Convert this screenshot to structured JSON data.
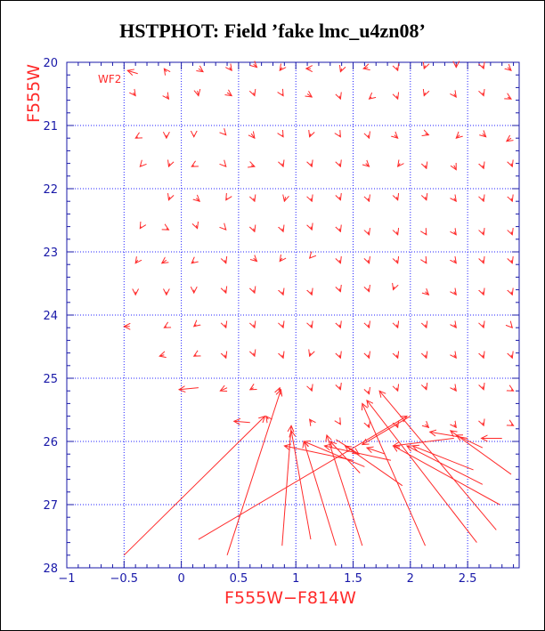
{
  "chart_data": {
    "type": "quiver",
    "title": "HSTPHOT: Field ’fake lmc_u4zn08’",
    "xlabel": "F555W−F814W",
    "ylabel": "F555W",
    "chip_label": "WF2",
    "xlim": [
      -1,
      2.95
    ],
    "ylim": [
      28,
      20
    ],
    "x_ticks": [
      "−1",
      "−0.5",
      "0",
      "0.5",
      "1",
      "1.5",
      "2",
      "2.5"
    ],
    "x_tick_values": [
      -1,
      -0.5,
      0,
      0.5,
      1,
      1.5,
      2,
      2.5
    ],
    "y_ticks": [
      "20",
      "21",
      "22",
      "23",
      "24",
      "25",
      "26",
      "27",
      "28"
    ],
    "y_tick_values": [
      20,
      21,
      22,
      23,
      24,
      25,
      26,
      27,
      28
    ],
    "grid": true,
    "colors": {
      "axes": "#1818a8",
      "grid": "#2020ff",
      "vectors": "#ff2a2a",
      "labels": "#ff2a2a"
    },
    "vectors": [
      [
        -0.38,
        20.18,
        -0.47,
        20.13
      ],
      [
        -0.13,
        20.15,
        -0.15,
        20.1
      ],
      [
        0.15,
        20.1,
        0.19,
        20.15
      ],
      [
        0.42,
        20.08,
        0.44,
        20.13
      ],
      [
        0.63,
        20.03,
        0.66,
        20.08
      ],
      [
        0.88,
        20.08,
        0.86,
        20.13
      ],
      [
        1.13,
        20.1,
        1.09,
        20.1
      ],
      [
        1.4,
        20.1,
        1.39,
        20.15
      ],
      [
        1.63,
        20.08,
        1.59,
        20.1
      ],
      [
        1.88,
        20.08,
        1.89,
        20.13
      ],
      [
        2.13,
        20.05,
        2.12,
        20.1
      ],
      [
        2.4,
        20.03,
        2.4,
        20.08
      ],
      [
        2.63,
        20.05,
        2.64,
        20.1
      ],
      [
        2.85,
        20.08,
        2.88,
        20.13
      ],
      [
        -0.42,
        20.48,
        -0.4,
        20.53
      ],
      [
        -0.13,
        20.53,
        -0.11,
        20.58
      ],
      [
        0.14,
        20.45,
        0.15,
        20.53
      ],
      [
        0.4,
        20.48,
        0.44,
        20.53
      ],
      [
        0.63,
        20.48,
        0.64,
        20.53
      ],
      [
        0.88,
        20.5,
        0.89,
        20.53
      ],
      [
        1.1,
        20.5,
        1.14,
        20.55
      ],
      [
        1.38,
        20.53,
        1.39,
        20.58
      ],
      [
        1.66,
        20.55,
        1.64,
        20.58
      ],
      [
        1.88,
        20.53,
        1.89,
        20.58
      ],
      [
        2.13,
        20.48,
        2.12,
        20.53
      ],
      [
        2.38,
        20.5,
        2.4,
        20.55
      ],
      [
        2.63,
        20.48,
        2.64,
        20.53
      ],
      [
        2.85,
        20.55,
        2.88,
        20.58
      ],
      [
        -0.38,
        21.18,
        -0.4,
        21.2
      ],
      [
        -0.13,
        21.15,
        -0.13,
        21.2
      ],
      [
        0.11,
        21.15,
        0.11,
        21.18
      ],
      [
        0.38,
        21.13,
        0.39,
        21.15
      ],
      [
        0.61,
        21.13,
        0.64,
        21.2
      ],
      [
        0.88,
        21.15,
        0.89,
        21.18
      ],
      [
        1.13,
        21.13,
        1.12,
        21.18
      ],
      [
        1.38,
        21.15,
        1.39,
        21.18
      ],
      [
        1.63,
        21.15,
        1.64,
        21.2
      ],
      [
        1.86,
        21.15,
        1.89,
        21.2
      ],
      [
        2.13,
        21.13,
        2.16,
        21.15
      ],
      [
        2.43,
        21.15,
        2.4,
        21.2
      ],
      [
        2.63,
        21.13,
        2.66,
        21.18
      ],
      [
        2.88,
        21.2,
        2.84,
        21.25
      ],
      [
        -0.35,
        21.63,
        -0.36,
        21.65
      ],
      [
        -0.1,
        21.6,
        -0.11,
        21.65
      ],
      [
        0.11,
        21.63,
        0.09,
        21.65
      ],
      [
        0.38,
        21.63,
        0.39,
        21.65
      ],
      [
        0.61,
        21.63,
        0.64,
        21.65
      ],
      [
        0.88,
        21.6,
        0.89,
        21.65
      ],
      [
        1.13,
        21.6,
        1.14,
        21.65
      ],
      [
        1.38,
        21.6,
        1.39,
        21.65
      ],
      [
        1.61,
        21.6,
        1.64,
        21.65
      ],
      [
        1.91,
        21.6,
        1.89,
        21.65
      ],
      [
        2.13,
        21.63,
        2.14,
        21.68
      ],
      [
        2.38,
        21.63,
        2.4,
        21.7
      ],
      [
        2.63,
        21.63,
        2.64,
        21.68
      ],
      [
        2.88,
        21.6,
        2.89,
        21.65
      ],
      [
        -0.1,
        22.13,
        -0.11,
        22.18
      ],
      [
        0.13,
        22.15,
        0.16,
        22.2
      ],
      [
        0.4,
        22.15,
        0.39,
        22.18
      ],
      [
        0.63,
        22.15,
        0.64,
        22.2
      ],
      [
        0.91,
        22.13,
        0.9,
        22.2
      ],
      [
        1.13,
        22.15,
        1.14,
        22.2
      ],
      [
        1.38,
        22.13,
        1.39,
        22.18
      ],
      [
        1.63,
        22.15,
        1.64,
        22.2
      ],
      [
        1.88,
        22.13,
        1.89,
        22.18
      ],
      [
        2.13,
        22.13,
        2.14,
        22.18
      ],
      [
        2.38,
        22.15,
        2.4,
        22.2
      ],
      [
        2.63,
        22.15,
        2.64,
        22.2
      ],
      [
        2.88,
        22.15,
        2.89,
        22.2
      ],
      [
        -0.35,
        22.6,
        -0.36,
        22.63
      ],
      [
        -0.13,
        22.63,
        -0.11,
        22.65
      ],
      [
        0.13,
        22.58,
        0.14,
        22.63
      ],
      [
        0.38,
        22.63,
        0.39,
        22.65
      ],
      [
        0.63,
        22.63,
        0.64,
        22.68
      ],
      [
        0.88,
        22.63,
        0.89,
        22.68
      ],
      [
        1.13,
        22.6,
        1.14,
        22.65
      ],
      [
        1.38,
        22.63,
        1.39,
        22.68
      ],
      [
        1.63,
        22.68,
        1.64,
        22.73
      ],
      [
        1.88,
        22.68,
        1.89,
        22.73
      ],
      [
        2.13,
        22.7,
        2.14,
        22.73
      ],
      [
        2.38,
        22.68,
        2.4,
        22.73
      ],
      [
        2.63,
        22.68,
        2.64,
        22.73
      ],
      [
        2.88,
        22.68,
        2.89,
        22.73
      ],
      [
        -0.38,
        23.13,
        -0.4,
        23.18
      ],
      [
        -0.13,
        23.13,
        -0.17,
        23.18
      ],
      [
        0.11,
        23.15,
        0.09,
        23.18
      ],
      [
        0.38,
        23.13,
        0.39,
        23.18
      ],
      [
        0.63,
        23.1,
        0.66,
        23.15
      ],
      [
        0.88,
        23.1,
        0.86,
        23.15
      ],
      [
        1.13,
        23.08,
        1.12,
        23.1
      ],
      [
        1.38,
        23.13,
        1.39,
        23.18
      ],
      [
        1.63,
        23.13,
        1.64,
        23.18
      ],
      [
        1.88,
        23.13,
        1.89,
        23.18
      ],
      [
        2.13,
        23.15,
        2.14,
        23.18
      ],
      [
        2.38,
        23.13,
        2.4,
        23.18
      ],
      [
        2.63,
        23.13,
        2.64,
        23.18
      ],
      [
        2.88,
        23.13,
        2.89,
        23.18
      ],
      [
        -0.4,
        23.63,
        -0.4,
        23.68
      ],
      [
        -0.13,
        23.63,
        -0.13,
        23.68
      ],
      [
        0.11,
        23.6,
        0.11,
        23.65
      ],
      [
        0.38,
        23.6,
        0.39,
        23.65
      ],
      [
        0.63,
        23.6,
        0.64,
        23.65
      ],
      [
        0.88,
        23.63,
        0.89,
        23.68
      ],
      [
        1.13,
        23.63,
        1.14,
        23.68
      ],
      [
        1.38,
        23.58,
        1.39,
        23.63
      ],
      [
        1.63,
        23.58,
        1.64,
        23.63
      ],
      [
        1.86,
        23.55,
        1.85,
        23.6
      ],
      [
        2.13,
        23.63,
        2.16,
        23.68
      ],
      [
        2.38,
        23.63,
        2.4,
        23.68
      ],
      [
        2.63,
        23.63,
        2.64,
        23.68
      ],
      [
        2.88,
        23.63,
        2.89,
        23.68
      ],
      [
        -0.45,
        24.18,
        -0.5,
        24.18
      ],
      [
        -0.13,
        24.18,
        -0.15,
        24.2
      ],
      [
        0.13,
        24.15,
        0.11,
        24.18
      ],
      [
        0.38,
        24.15,
        0.39,
        24.2
      ],
      [
        0.63,
        24.15,
        0.64,
        24.2
      ],
      [
        0.88,
        24.15,
        0.89,
        24.2
      ],
      [
        1.13,
        24.15,
        1.14,
        24.2
      ],
      [
        1.38,
        24.15,
        1.39,
        24.2
      ],
      [
        1.63,
        24.15,
        1.64,
        24.2
      ],
      [
        1.88,
        24.15,
        1.89,
        24.2
      ],
      [
        2.13,
        24.15,
        2.14,
        24.2
      ],
      [
        2.38,
        24.15,
        2.4,
        24.2
      ],
      [
        2.63,
        24.15,
        2.64,
        24.2
      ],
      [
        2.88,
        24.18,
        2.89,
        24.2
      ],
      [
        -0.15,
        24.63,
        -0.19,
        24.65
      ],
      [
        0.13,
        24.63,
        0.11,
        24.65
      ],
      [
        0.38,
        24.63,
        0.39,
        24.68
      ],
      [
        0.63,
        24.6,
        0.64,
        24.65
      ],
      [
        0.88,
        24.63,
        0.89,
        24.68
      ],
      [
        1.13,
        24.6,
        1.12,
        24.65
      ],
      [
        1.38,
        24.63,
        1.39,
        24.68
      ],
      [
        1.63,
        24.63,
        1.64,
        24.68
      ],
      [
        1.88,
        24.63,
        1.89,
        24.68
      ],
      [
        2.13,
        24.63,
        2.14,
        24.68
      ],
      [
        2.38,
        24.63,
        2.4,
        24.68
      ],
      [
        2.63,
        24.63,
        2.64,
        24.68
      ],
      [
        2.88,
        24.63,
        2.89,
        24.68
      ],
      [
        0.15,
        25.15,
        -0.02,
        25.18
      ],
      [
        0.4,
        25.15,
        0.34,
        25.2
      ],
      [
        0.63,
        25.15,
        0.6,
        25.18
      ],
      [
        0.85,
        25.2,
        0.86,
        25.15
      ],
      [
        1.13,
        25.15,
        1.14,
        25.2
      ],
      [
        1.38,
        25.13,
        1.39,
        25.18
      ],
      [
        1.63,
        25.2,
        1.64,
        25.25
      ],
      [
        1.88,
        25.15,
        1.89,
        25.2
      ],
      [
        2.13,
        25.13,
        2.14,
        25.18
      ],
      [
        2.38,
        25.15,
        2.4,
        25.2
      ],
      [
        2.63,
        25.13,
        2.64,
        25.18
      ],
      [
        2.88,
        25.18,
        2.9,
        25.2
      ],
      [
        0.6,
        25.7,
        0.46,
        25.68
      ],
      [
        0.76,
        25.65,
        0.74,
        25.6
      ],
      [
        1.14,
        25.7,
        1.12,
        25.65
      ],
      [
        1.38,
        25.7,
        1.39,
        25.73
      ],
      [
        1.63,
        25.73,
        1.64,
        25.78
      ],
      [
        1.88,
        25.73,
        1.89,
        25.78
      ],
      [
        2.13,
        25.73,
        2.16,
        25.78
      ],
      [
        2.38,
        25.73,
        2.4,
        25.78
      ],
      [
        2.63,
        25.7,
        2.64,
        25.75
      ],
      [
        2.88,
        25.73,
        2.9,
        25.75
      ],
      [
        -0.5,
        27.8,
        0.73,
        25.6
      ],
      [
        0.15,
        27.55,
        1.97,
        25.6
      ],
      [
        0.4,
        27.8,
        0.87,
        25.18
      ],
      [
        0.88,
        27.65,
        0.96,
        25.75
      ],
      [
        1.13,
        27.55,
        0.96,
        25.83
      ],
      [
        1.35,
        27.65,
        1.07,
        26.0
      ],
      [
        1.58,
        27.65,
        1.27,
        25.9
      ],
      [
        2.13,
        27.65,
        1.58,
        25.4
      ],
      [
        2.58,
        27.6,
        1.62,
        25.35
      ],
      [
        2.75,
        27.4,
        1.73,
        25.2
      ],
      [
        2.78,
        27.0,
        1.85,
        26.07
      ],
      [
        2.63,
        26.68,
        1.97,
        26.07
      ],
      [
        2.88,
        26.52,
        2.35,
        25.83
      ],
      [
        2.55,
        26.45,
        2.02,
        26.07
      ],
      [
        1.83,
        26.3,
        1.25,
        26.07
      ],
      [
        2.0,
        25.6,
        1.58,
        26.05
      ],
      [
        1.6,
        26.4,
        1.07,
        26.0
      ],
      [
        1.5,
        26.3,
        0.9,
        26.07
      ],
      [
        1.93,
        26.7,
        1.43,
        26.07
      ],
      [
        2.38,
        25.95,
        1.85,
        26.07
      ],
      [
        2.8,
        25.95,
        2.62,
        25.95
      ],
      [
        2.63,
        26.1,
        2.4,
        25.9
      ],
      [
        2.5,
        25.95,
        2.17,
        25.85
      ],
      [
        1.78,
        26.2,
        1.62,
        26.1
      ],
      [
        1.35,
        25.97,
        1.55,
        26.2
      ],
      [
        1.56,
        26.5,
        1.3,
        26.0
      ]
    ]
  }
}
